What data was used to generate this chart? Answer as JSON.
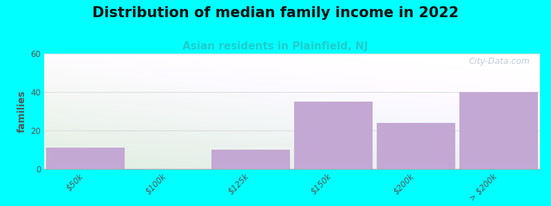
{
  "title": "Distribution of median family income in 2022",
  "subtitle": "Asian residents in Plainfield, NJ",
  "subtitle_color": "#22cccc",
  "background_color": "#00ffff",
  "plot_bg_color_topleft": "#e8f5e8",
  "plot_bg_color_topright": "#f0f8f8",
  "plot_bg_color_bottom": "#d8edd8",
  "bar_color": "#c4a8d4",
  "categories": [
    "$50k",
    "$100k",
    "$125k",
    "$150k",
    "$200k",
    "> $200k"
  ],
  "values": [
    11,
    0,
    10,
    35,
    24,
    40
  ],
  "ylabel": "families",
  "ylim": [
    0,
    60
  ],
  "yticks": [
    0,
    20,
    40,
    60
  ],
  "grid_color": "#dddddd",
  "watermark": "City-Data.com",
  "title_fontsize": 15,
  "subtitle_fontsize": 11,
  "ylabel_fontsize": 10,
  "tick_fontsize": 8.5
}
